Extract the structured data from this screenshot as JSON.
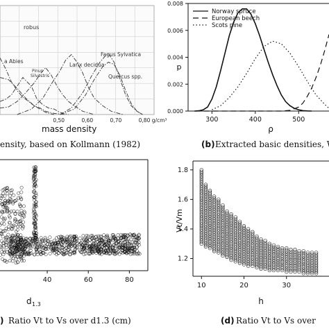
{
  "chart_data": [
    {
      "panel": "a",
      "type": "line",
      "caption": "ensity, based on Kollmann (1982)",
      "xlabel": "mass density",
      "x_ticks": [
        "0,50",
        "0,60",
        "0,70",
        "0,80 g/cm³"
      ],
      "x_tick_values": [
        0.5,
        0.6,
        0.7,
        0.8
      ],
      "xlim": [
        0.29,
        0.83
      ],
      "ylim": [
        0,
        1
      ],
      "grid": true,
      "series": [
        {
          "name": "robus",
          "style": "dashdot",
          "x": [
            0.29,
            0.31,
            0.33,
            0.35,
            0.37,
            0.39,
            0.41,
            0.43,
            0.45,
            0.48,
            0.52
          ],
          "y": [
            0.52,
            0.42,
            0.3,
            0.22,
            0.16,
            0.12,
            0.08,
            0.06,
            0.03,
            0.01,
            0.0
          ]
        },
        {
          "name": "a Abies",
          "style": "dashdot",
          "x": [
            0.29,
            0.31,
            0.33,
            0.35,
            0.37,
            0.4,
            0.42,
            0.44,
            0.46,
            0.48,
            0.5,
            0.53
          ],
          "y": [
            0.12,
            0.14,
            0.18,
            0.26,
            0.34,
            0.26,
            0.14,
            0.09,
            0.06,
            0.05,
            0.02,
            0.0
          ]
        },
        {
          "name": "Pinus Silvestris",
          "style": "dashdot",
          "x": [
            0.29,
            0.32,
            0.35,
            0.38,
            0.41,
            0.43,
            0.45,
            0.47,
            0.49,
            0.51,
            0.53,
            0.55,
            0.58,
            0.62
          ],
          "y": [
            0.06,
            0.07,
            0.12,
            0.2,
            0.29,
            0.37,
            0.43,
            0.36,
            0.26,
            0.18,
            0.12,
            0.08,
            0.03,
            0.0
          ]
        },
        {
          "name": "Larix decidua",
          "style": "dashdot",
          "x": [
            0.35,
            0.4,
            0.44,
            0.47,
            0.5,
            0.52,
            0.54,
            0.56,
            0.58,
            0.6,
            0.62,
            0.65,
            0.68,
            0.72
          ],
          "y": [
            0.0,
            0.05,
            0.15,
            0.28,
            0.4,
            0.5,
            0.55,
            0.48,
            0.38,
            0.25,
            0.15,
            0.08,
            0.03,
            0.0
          ]
        },
        {
          "name": "Fagus Sylvatica",
          "style": "dashdot",
          "x": [
            0.5,
            0.54,
            0.58,
            0.61,
            0.64,
            0.66,
            0.67,
            0.69,
            0.71,
            0.73,
            0.75,
            0.77,
            0.79
          ],
          "y": [
            0.0,
            0.06,
            0.2,
            0.35,
            0.48,
            0.54,
            0.56,
            0.48,
            0.33,
            0.18,
            0.08,
            0.03,
            0.0
          ]
        },
        {
          "name": "Quercus spp.",
          "style": "dashdot",
          "x": [
            0.5,
            0.55,
            0.59,
            0.62,
            0.65,
            0.67,
            0.69,
            0.71,
            0.73,
            0.75,
            0.77,
            0.79
          ],
          "y": [
            0.0,
            0.05,
            0.18,
            0.32,
            0.44,
            0.48,
            0.46,
            0.36,
            0.22,
            0.1,
            0.03,
            0.0
          ]
        },
        {
          "name": "",
          "style": "dashdot",
          "x": [
            0.29,
            0.32,
            0.35,
            0.38,
            0.41,
            0.45,
            0.48
          ],
          "y": [
            0.34,
            0.32,
            0.24,
            0.15,
            0.08,
            0.02,
            0.0
          ]
        }
      ]
    },
    {
      "panel": "b",
      "type": "line",
      "caption_label": "(b)",
      "caption": "Extracted basic densities, Weil",
      "xlabel": "ρ",
      "ylabel": "p",
      "x_ticks": [
        "300",
        "400",
        "500"
      ],
      "y_ticks": [
        "0.000",
        "0.002",
        "0.004",
        "0.006",
        "0.008"
      ],
      "xlim": [
        245,
        570
      ],
      "ylim": [
        0,
        0.008
      ],
      "legend": "top-left",
      "series": [
        {
          "name": "Norway spruce",
          "style": "solid",
          "x": [
            260,
            270,
            280,
            290,
            300,
            310,
            320,
            330,
            340,
            350,
            360,
            370,
            380,
            390,
            400,
            410,
            420,
            430,
            440,
            450,
            460,
            470,
            480,
            490,
            500,
            510,
            520,
            530
          ],
          "y": [
            0.0,
            2e-05,
            0.0001,
            0.0003,
            0.0009,
            0.0018,
            0.003,
            0.0043,
            0.0056,
            0.0066,
            0.0073,
            0.0076,
            0.0076,
            0.0072,
            0.0065,
            0.0056,
            0.0046,
            0.0036,
            0.0027,
            0.0019,
            0.0012,
            0.0007,
            0.0004,
            0.0002,
            0.0001,
            3e-05,
            1e-05,
            0.0
          ]
        },
        {
          "name": "European beech",
          "style": "dashed",
          "x": [
            260,
            300,
            340,
            380,
            420,
            460,
            480,
            500,
            510,
            520,
            530,
            540,
            550,
            560,
            570
          ],
          "y": [
            0.0,
            0.0,
            0.0,
            0.0,
            0.0,
            0.0,
            5e-05,
            0.0003,
            0.0006,
            0.0011,
            0.0017,
            0.0025,
            0.0034,
            0.0045,
            0.0057
          ]
        },
        {
          "name": "Scots pine",
          "style": "dotted",
          "x": [
            300,
            320,
            340,
            360,
            380,
            400,
            420,
            440,
            460,
            480,
            500,
            520,
            540,
            560,
            570
          ],
          "y": [
            0.0001,
            0.0004,
            0.001,
            0.0018,
            0.0028,
            0.0039,
            0.0048,
            0.0052,
            0.005,
            0.0043,
            0.0033,
            0.0022,
            0.0012,
            0.0005,
            0.0002
          ]
        }
      ]
    },
    {
      "panel": "c",
      "type": "scatter",
      "caption_label": ")",
      "caption_plain": "Ratio",
      "caption": "Ratio V_t to V_s over d_1.3 (cm)",
      "xlabel": "d",
      "xlabel_sub": "1.3",
      "x_ticks": [
        "40",
        "60",
        "80"
      ],
      "xlim": [
        17,
        89
      ],
      "ylim": [
        0,
        1
      ],
      "marker": "open-circle",
      "note": "vertical column of points near d=34, dense band rising slightly with d",
      "band": {
        "x": [
          22,
          85
        ],
        "y_low": [
          0.35,
          0.38
        ],
        "y_high": [
          0.45,
          0.5
        ]
      }
    },
    {
      "panel": "d",
      "type": "scatter",
      "caption_label": "(d)",
      "caption_plain": "Ratio",
      "caption": "Ratio V_t to V_s over",
      "xlabel": "h",
      "ylabel": "V_t/V_m",
      "x_ticks": [
        "10",
        "20",
        "30"
      ],
      "y_ticks": [
        "1.2",
        "1.4",
        "1.6",
        "1.8"
      ],
      "xlim": [
        8,
        40
      ],
      "ylim": [
        1.08,
        1.86
      ],
      "marker": "open-circle",
      "columns": [
        {
          "h": 10,
          "min": 1.3,
          "max": 1.8
        },
        {
          "h": 11,
          "min": 1.28,
          "max": 1.7
        },
        {
          "h": 12,
          "min": 1.27,
          "max": 1.66
        },
        {
          "h": 13,
          "min": 1.25,
          "max": 1.62
        },
        {
          "h": 14,
          "min": 1.24,
          "max": 1.6
        },
        {
          "h": 15,
          "min": 1.22,
          "max": 1.56
        },
        {
          "h": 16,
          "min": 1.21,
          "max": 1.52
        },
        {
          "h": 17,
          "min": 1.19,
          "max": 1.5
        },
        {
          "h": 18,
          "min": 1.18,
          "max": 1.48
        },
        {
          "h": 19,
          "min": 1.17,
          "max": 1.45
        },
        {
          "h": 20,
          "min": 1.16,
          "max": 1.42
        },
        {
          "h": 21,
          "min": 1.15,
          "max": 1.4
        },
        {
          "h": 22,
          "min": 1.15,
          "max": 1.38
        },
        {
          "h": 23,
          "min": 1.14,
          "max": 1.35
        },
        {
          "h": 24,
          "min": 1.13,
          "max": 1.33
        },
        {
          "h": 25,
          "min": 1.13,
          "max": 1.32
        },
        {
          "h": 26,
          "min": 1.12,
          "max": 1.3
        },
        {
          "h": 27,
          "min": 1.12,
          "max": 1.29
        },
        {
          "h": 28,
          "min": 1.12,
          "max": 1.28
        },
        {
          "h": 29,
          "min": 1.12,
          "max": 1.27
        },
        {
          "h": 30,
          "min": 1.11,
          "max": 1.27
        },
        {
          "h": 31,
          "min": 1.11,
          "max": 1.26
        },
        {
          "h": 32,
          "min": 1.11,
          "max": 1.26
        },
        {
          "h": 33,
          "min": 1.11,
          "max": 1.25
        },
        {
          "h": 34,
          "min": 1.1,
          "max": 1.25
        },
        {
          "h": 35,
          "min": 1.1,
          "max": 1.24
        },
        {
          "h": 36,
          "min": 1.1,
          "max": 1.24
        },
        {
          "h": 37,
          "min": 1.1,
          "max": 1.24
        }
      ]
    }
  ]
}
